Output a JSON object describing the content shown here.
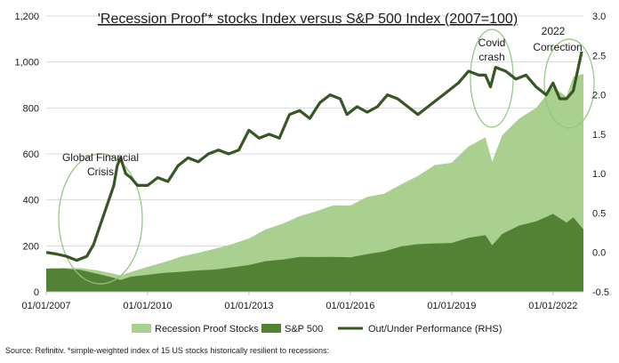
{
  "chart_data": {
    "type": "area",
    "title": "'Recession Proof'* stocks Index versus S&P 500 Index (2007=100)",
    "x_tick_labels": [
      "01/01/2007",
      "01/01/2010",
      "01/01/2013",
      "01/01/2016",
      "01/01/2019",
      "01/01/2022"
    ],
    "x_range": [
      2007.0,
      2022.9
    ],
    "y_left": {
      "range": [
        0,
        1200
      ],
      "ticks": [
        0,
        200,
        400,
        600,
        800,
        1000,
        1200
      ],
      "tick_labels": [
        "0",
        "200",
        "400",
        "600",
        "800",
        "1,000",
        "1,200"
      ]
    },
    "y_right": {
      "range": [
        -0.5,
        3.0
      ],
      "ticks": [
        -0.5,
        0,
        0.5,
        1,
        1.5,
        2,
        2.5,
        3
      ],
      "tick_labels": [
        "-0.5",
        "0.0",
        "0.5",
        "1.0",
        "1.5",
        "2.0",
        "2.5",
        "3.0"
      ]
    },
    "series": [
      {
        "name": "Recession Proof Stocks",
        "axis": "left",
        "style": "area",
        "color": "#a9d08e",
        "x": [
          2007.0,
          2007.5,
          2008.0,
          2008.5,
          2009.0,
          2009.2,
          2009.5,
          2010.0,
          2010.5,
          2011.0,
          2011.5,
          2012.0,
          2012.5,
          2013.0,
          2013.5,
          2014.0,
          2014.5,
          2015.0,
          2015.5,
          2016.0,
          2016.5,
          2017.0,
          2017.5,
          2018.0,
          2018.5,
          2019.0,
          2019.5,
          2020.0,
          2020.2,
          2020.5,
          2021.0,
          2021.5,
          2022.0,
          2022.4,
          2022.6,
          2022.9
        ],
        "values": [
          100,
          105,
          102,
          95,
          78,
          72,
          85,
          110,
          128,
          155,
          168,
          190,
          205,
          235,
          268,
          300,
          325,
          355,
          372,
          380,
          408,
          432,
          462,
          510,
          545,
          568,
          625,
          680,
          560,
          690,
          745,
          810,
          880,
          860,
          925,
          960
        ]
      },
      {
        "name": "S&P 500",
        "axis": "left",
        "style": "area",
        "color": "#548235",
        "x": [
          2007.0,
          2007.5,
          2008.0,
          2008.5,
          2009.0,
          2009.2,
          2009.5,
          2010.0,
          2010.5,
          2011.0,
          2011.5,
          2012.0,
          2012.5,
          2013.0,
          2013.5,
          2014.0,
          2014.5,
          2015.0,
          2015.5,
          2016.0,
          2016.5,
          2017.0,
          2017.5,
          2018.0,
          2018.5,
          2019.0,
          2019.5,
          2020.0,
          2020.2,
          2020.5,
          2021.0,
          2021.5,
          2022.0,
          2022.4,
          2022.6,
          2022.9
        ],
        "values": [
          100,
          103,
          95,
          80,
          60,
          52,
          65,
          75,
          82,
          88,
          92,
          98,
          105,
          118,
          132,
          142,
          150,
          153,
          150,
          152,
          162,
          178,
          195,
          210,
          208,
          215,
          232,
          250,
          200,
          255,
          285,
          310,
          335,
          305,
          320,
          275
        ]
      },
      {
        "name": "Out/Under Performance (RHS)",
        "axis": "right",
        "style": "line",
        "color": "#375623",
        "x": [
          2007.0,
          2007.3,
          2007.6,
          2007.9,
          2008.2,
          2008.4,
          2008.6,
          2008.8,
          2009.0,
          2009.1,
          2009.2,
          2009.35,
          2009.5,
          2009.7,
          2010.0,
          2010.3,
          2010.6,
          2010.9,
          2011.2,
          2011.5,
          2011.8,
          2012.1,
          2012.4,
          2012.7,
          2013.0,
          2013.3,
          2013.6,
          2013.9,
          2014.2,
          2014.5,
          2014.8,
          2015.1,
          2015.4,
          2015.7,
          2015.9,
          2016.2,
          2016.5,
          2016.8,
          2017.1,
          2017.4,
          2017.7,
          2018.0,
          2018.3,
          2018.6,
          2018.9,
          2019.2,
          2019.5,
          2019.8,
          2020.0,
          2020.15,
          2020.3,
          2020.6,
          2020.9,
          2021.2,
          2021.5,
          2021.8,
          2022.0,
          2022.2,
          2022.4,
          2022.6,
          2022.75,
          2022.85
        ],
        "values": [
          0.0,
          -0.02,
          -0.05,
          -0.1,
          -0.05,
          0.1,
          0.35,
          0.6,
          0.85,
          1.1,
          1.2,
          1.0,
          0.95,
          0.85,
          0.85,
          0.95,
          0.9,
          1.1,
          1.2,
          1.15,
          1.25,
          1.3,
          1.25,
          1.3,
          1.55,
          1.45,
          1.5,
          1.45,
          1.75,
          1.8,
          1.7,
          1.9,
          2.0,
          1.95,
          1.75,
          1.85,
          1.78,
          1.85,
          2.0,
          1.95,
          1.85,
          1.75,
          1.85,
          1.95,
          2.05,
          2.15,
          2.3,
          2.25,
          2.25,
          2.1,
          2.35,
          2.3,
          2.2,
          2.25,
          2.1,
          2.0,
          2.15,
          1.95,
          1.95,
          2.05,
          2.35,
          2.55
        ]
      }
    ],
    "annotations": [
      {
        "lines": [
          "Global Financial",
          "Crisis"
        ]
      },
      {
        "lines": [
          "Covid",
          "crash"
        ]
      },
      {
        "lines": [
          "2022",
          "Correction"
        ]
      }
    ],
    "legend_position": "bottom",
    "grid": true
  },
  "source_note": "Source: Refinitiv. *simple-weighted index of 15 US stocks historically resilient to recessions:"
}
